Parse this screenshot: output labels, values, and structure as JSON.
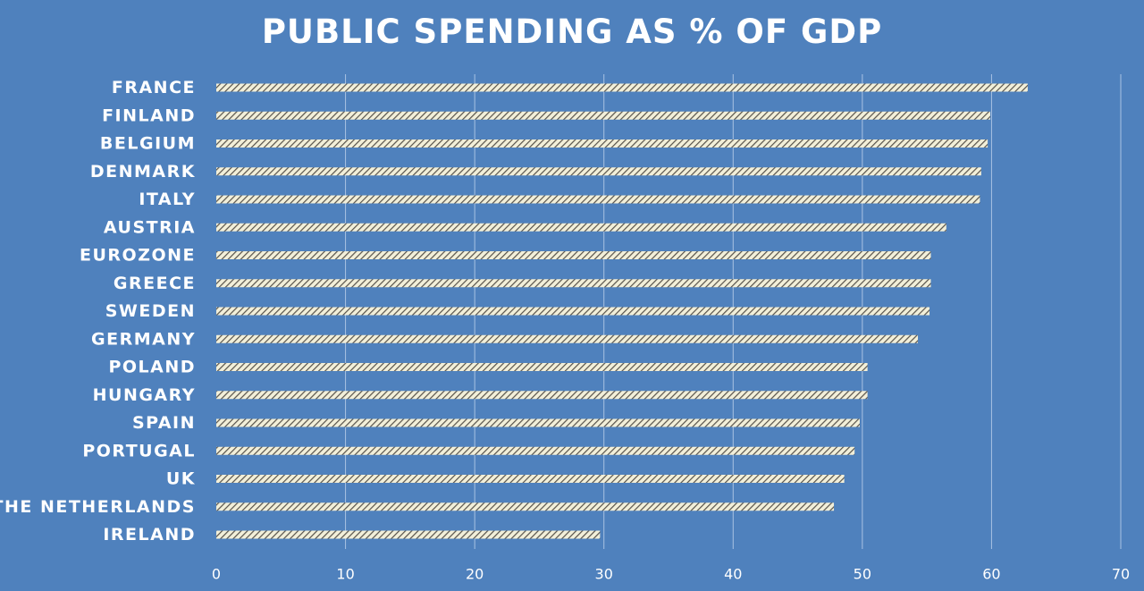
{
  "chart_data": {
    "type": "bar",
    "orientation": "horizontal",
    "title": "PUBLIC SPENDING AS % OF GDP",
    "categories": [
      "FRANCE",
      "FINLAND",
      "BELGIUM",
      "DENMARK",
      "ITALY",
      "AUSTRIA",
      "EUROZONE",
      "GREECE",
      "SWEDEN",
      "GERMANY",
      "POLAND",
      "HUNGARY",
      "SPAIN",
      "PORTUGAL",
      "UK",
      "THE NETHERLANDS",
      "IRELAND"
    ],
    "values": [
      62.8,
      59.9,
      59.7,
      59.2,
      59.1,
      56.5,
      55.3,
      55.3,
      55.2,
      54.3,
      50.4,
      50.4,
      49.8,
      49.4,
      48.6,
      47.8,
      29.7
    ],
    "xlim": [
      0,
      70
    ],
    "xticks": [
      "0",
      "10",
      "20",
      "30",
      "40",
      "50",
      "60",
      "70"
    ],
    "grid": true,
    "legend": "none",
    "colors": {
      "background": "#4f81bd",
      "bar_fill": "#f2efd9",
      "bar_hatch": "#57524a",
      "gridline": "#a9c2e3",
      "text": "#ffffff"
    }
  }
}
